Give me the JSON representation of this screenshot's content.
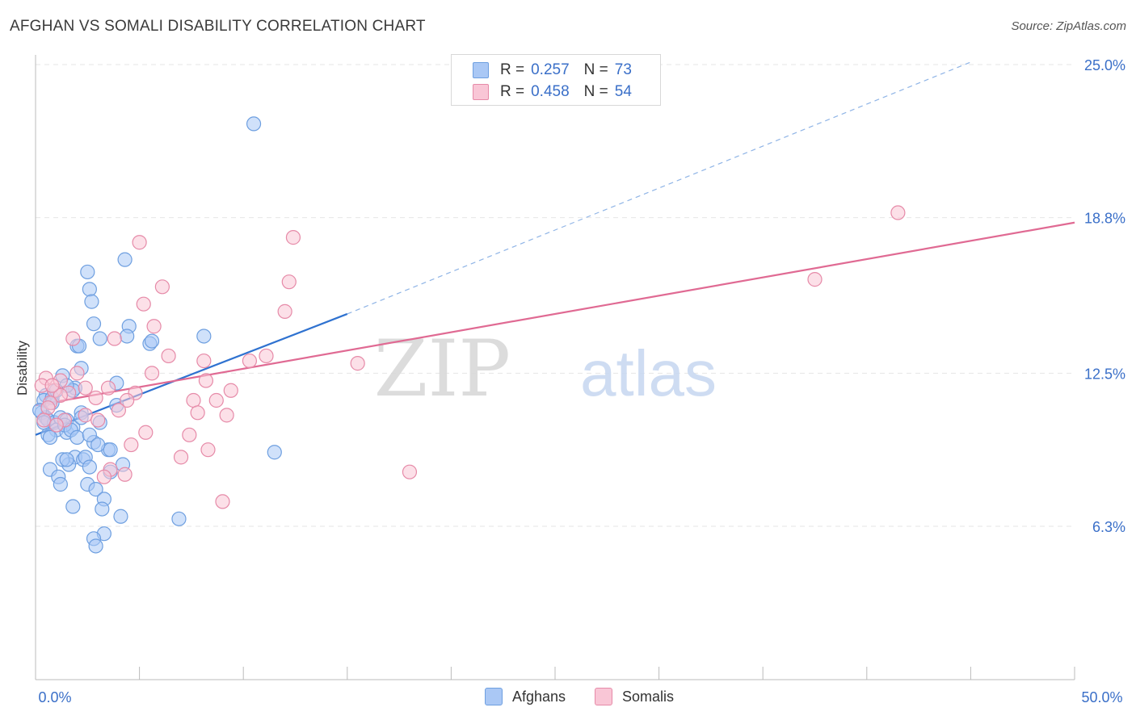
{
  "title": "AFGHAN VS SOMALI DISABILITY CORRELATION CHART",
  "source": "Source: ZipAtlas.com",
  "watermark": {
    "zip": "ZIP",
    "atlas": "atlas"
  },
  "legend_top": [
    {
      "r_label": "R = ",
      "r_value": "0.257",
      "n_label": "N = ",
      "n_value": "73",
      "color": "#aac8f5",
      "border": "#6e9fe0"
    },
    {
      "r_label": "R = ",
      "r_value": "0.458",
      "n_label": "N = ",
      "n_value": "54",
      "color": "#f9c6d6",
      "border": "#e68aa8"
    }
  ],
  "chart_data": {
    "type": "scatter",
    "title": "AFGHAN VS SOMALI DISABILITY CORRELATION CHART",
    "xlabel": "",
    "ylabel": "Disability",
    "xlim": [
      0,
      50
    ],
    "ylim": [
      0,
      26
    ],
    "x_tick_labels": [
      "0.0%",
      "50.0%"
    ],
    "y_ticks": [
      6.3,
      12.5,
      18.8,
      25.0
    ],
    "y_tick_labels": [
      "6.3%",
      "12.5%",
      "18.8%",
      "25.0%"
    ],
    "grid": "horizontal dashed",
    "legend": "bottom-center",
    "series": [
      {
        "name": "Afghans",
        "color": "#6e9fe0",
        "fill": "#aac8f5",
        "trend": {
          "x": [
            0.0,
            15.0
          ],
          "y": [
            10.0,
            14.9
          ],
          "color": "#2f72d0",
          "extend_dashed_to": [
            45.0,
            25.0
          ]
        },
        "points": [
          [
            10.5,
            22.6
          ],
          [
            4.3,
            17.1
          ],
          [
            2.5,
            16.6
          ],
          [
            2.6,
            15.9
          ],
          [
            2.7,
            15.4
          ],
          [
            2.8,
            14.5
          ],
          [
            3.1,
            13.9
          ],
          [
            2.0,
            13.6
          ],
          [
            2.1,
            13.6
          ],
          [
            4.5,
            14.4
          ],
          [
            4.4,
            14.0
          ],
          [
            5.5,
            13.7
          ],
          [
            5.6,
            13.8
          ],
          [
            8.1,
            14.0
          ],
          [
            1.3,
            12.4
          ],
          [
            2.2,
            12.7
          ],
          [
            3.9,
            12.1
          ],
          [
            1.9,
            11.9
          ],
          [
            1.8,
            11.8
          ],
          [
            1.5,
            12.0
          ],
          [
            0.5,
            11.6
          ],
          [
            0.4,
            11.4
          ],
          [
            0.8,
            11.5
          ],
          [
            0.3,
            10.9
          ],
          [
            0.5,
            10.7
          ],
          [
            0.6,
            10.6
          ],
          [
            0.9,
            10.5
          ],
          [
            1.2,
            10.7
          ],
          [
            1.5,
            10.6
          ],
          [
            2.2,
            10.9
          ],
          [
            3.1,
            10.5
          ],
          [
            3.9,
            11.2
          ],
          [
            1.0,
            10.2
          ],
          [
            1.5,
            10.1
          ],
          [
            1.8,
            10.3
          ],
          [
            0.6,
            10.0
          ],
          [
            2.8,
            9.7
          ],
          [
            1.9,
            9.1
          ],
          [
            2.3,
            9.0
          ],
          [
            2.4,
            9.1
          ],
          [
            3.5,
            9.4
          ],
          [
            3.6,
            9.4
          ],
          [
            4.2,
            8.8
          ],
          [
            1.6,
            8.8
          ],
          [
            1.3,
            9.0
          ],
          [
            0.7,
            8.6
          ],
          [
            1.1,
            8.3
          ],
          [
            1.2,
            8.0
          ],
          [
            2.5,
            8.0
          ],
          [
            2.9,
            7.8
          ],
          [
            3.3,
            7.4
          ],
          [
            1.8,
            7.1
          ],
          [
            3.2,
            7.0
          ],
          [
            4.1,
            6.7
          ],
          [
            6.9,
            6.6
          ],
          [
            3.3,
            6.0
          ],
          [
            2.8,
            5.8
          ],
          [
            2.9,
            5.5
          ],
          [
            11.5,
            9.3
          ],
          [
            2.6,
            8.7
          ],
          [
            1.4,
            10.4
          ],
          [
            0.2,
            11.0
          ],
          [
            0.8,
            11.3
          ],
          [
            1.7,
            10.2
          ],
          [
            3.6,
            8.5
          ],
          [
            2.0,
            9.9
          ],
          [
            0.4,
            10.5
          ],
          [
            1.0,
            11.8
          ],
          [
            2.6,
            10.0
          ],
          [
            0.7,
            9.9
          ],
          [
            1.5,
            9.0
          ],
          [
            3.0,
            9.6
          ],
          [
            2.2,
            10.7
          ]
        ]
      },
      {
        "name": "Somalis",
        "color": "#e68aa8",
        "fill": "#f9c6d6",
        "trend": {
          "x": [
            0.0,
            50.0
          ],
          "y": [
            11.2,
            18.6
          ],
          "color": "#e06a93"
        },
        "points": [
          [
            41.5,
            19.0
          ],
          [
            37.5,
            16.3
          ],
          [
            12.4,
            18.0
          ],
          [
            5.0,
            17.8
          ],
          [
            12.2,
            16.2
          ],
          [
            6.1,
            16.0
          ],
          [
            12.0,
            15.0
          ],
          [
            5.2,
            15.3
          ],
          [
            5.7,
            14.4
          ],
          [
            1.8,
            13.9
          ],
          [
            3.8,
            13.9
          ],
          [
            11.1,
            13.2
          ],
          [
            10.3,
            13.0
          ],
          [
            6.4,
            13.2
          ],
          [
            8.1,
            13.0
          ],
          [
            15.5,
            12.9
          ],
          [
            5.6,
            12.5
          ],
          [
            0.5,
            12.3
          ],
          [
            2.0,
            12.5
          ],
          [
            8.2,
            12.2
          ],
          [
            0.3,
            12.0
          ],
          [
            3.5,
            11.9
          ],
          [
            0.9,
            11.8
          ],
          [
            1.6,
            11.7
          ],
          [
            2.4,
            11.9
          ],
          [
            9.4,
            11.8
          ],
          [
            4.8,
            11.7
          ],
          [
            1.2,
            11.6
          ],
          [
            0.7,
            11.3
          ],
          [
            2.9,
            11.5
          ],
          [
            7.6,
            11.4
          ],
          [
            8.7,
            11.4
          ],
          [
            4.4,
            11.4
          ],
          [
            0.6,
            11.1
          ],
          [
            4.0,
            11.0
          ],
          [
            7.8,
            10.9
          ],
          [
            9.2,
            10.8
          ],
          [
            2.4,
            10.8
          ],
          [
            1.4,
            10.6
          ],
          [
            3.0,
            10.6
          ],
          [
            0.4,
            10.6
          ],
          [
            1.0,
            10.4
          ],
          [
            5.3,
            10.1
          ],
          [
            7.4,
            10.0
          ],
          [
            4.6,
            9.6
          ],
          [
            8.3,
            9.4
          ],
          [
            7.0,
            9.1
          ],
          [
            3.6,
            8.6
          ],
          [
            4.3,
            8.4
          ],
          [
            3.3,
            8.3
          ],
          [
            18.0,
            8.5
          ],
          [
            9.0,
            7.3
          ],
          [
            1.2,
            12.2
          ],
          [
            0.8,
            12.0
          ]
        ]
      }
    ]
  }
}
